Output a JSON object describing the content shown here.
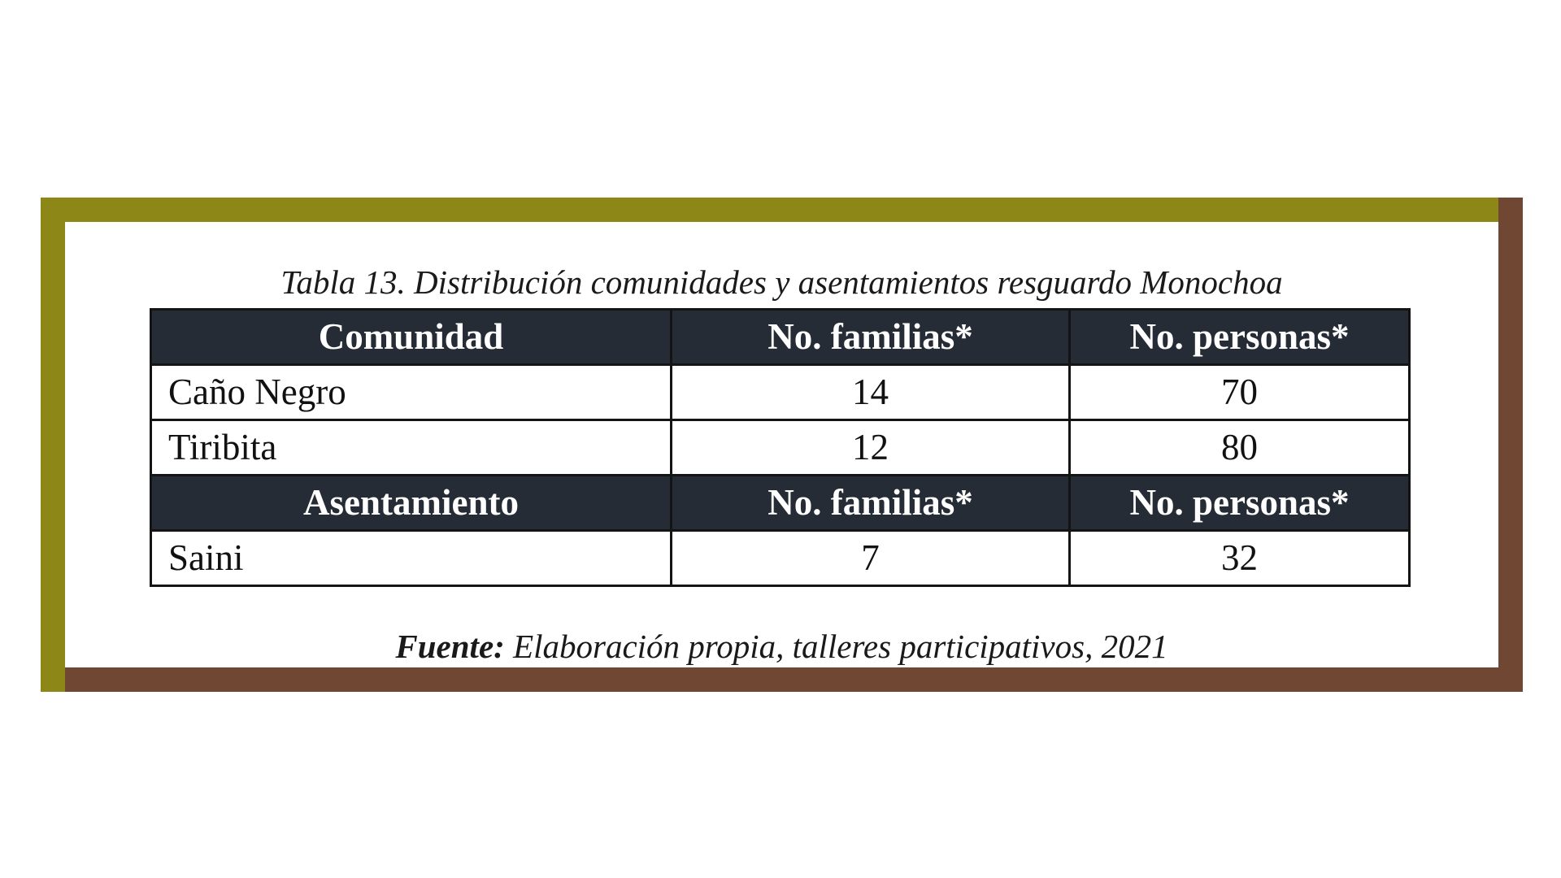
{
  "caption": "Tabla 13. Distribución comunidades y asentamientos resguardo Monochoa",
  "frame_colors": {
    "top_left": "#8c8717",
    "bottom_right": "#704733",
    "header_fill": "#262c35"
  },
  "table": {
    "header1": {
      "col1": "Comunidad",
      "col2": "No. familias*",
      "col3": "No. personas*"
    },
    "rows1": [
      {
        "name": "Caño Negro",
        "familias": "14",
        "personas": "70"
      },
      {
        "name": "Tiribita",
        "familias": "12",
        "personas": "80"
      }
    ],
    "header2": {
      "col1": "Asentamiento",
      "col2": "No. familias*",
      "col3": "No. personas*"
    },
    "rows2": [
      {
        "name": "Saini",
        "familias": "7",
        "personas": "32"
      }
    ]
  },
  "source": {
    "label": "Fuente:",
    "text": " Elaboración propia, talleres participativos, 2021"
  }
}
